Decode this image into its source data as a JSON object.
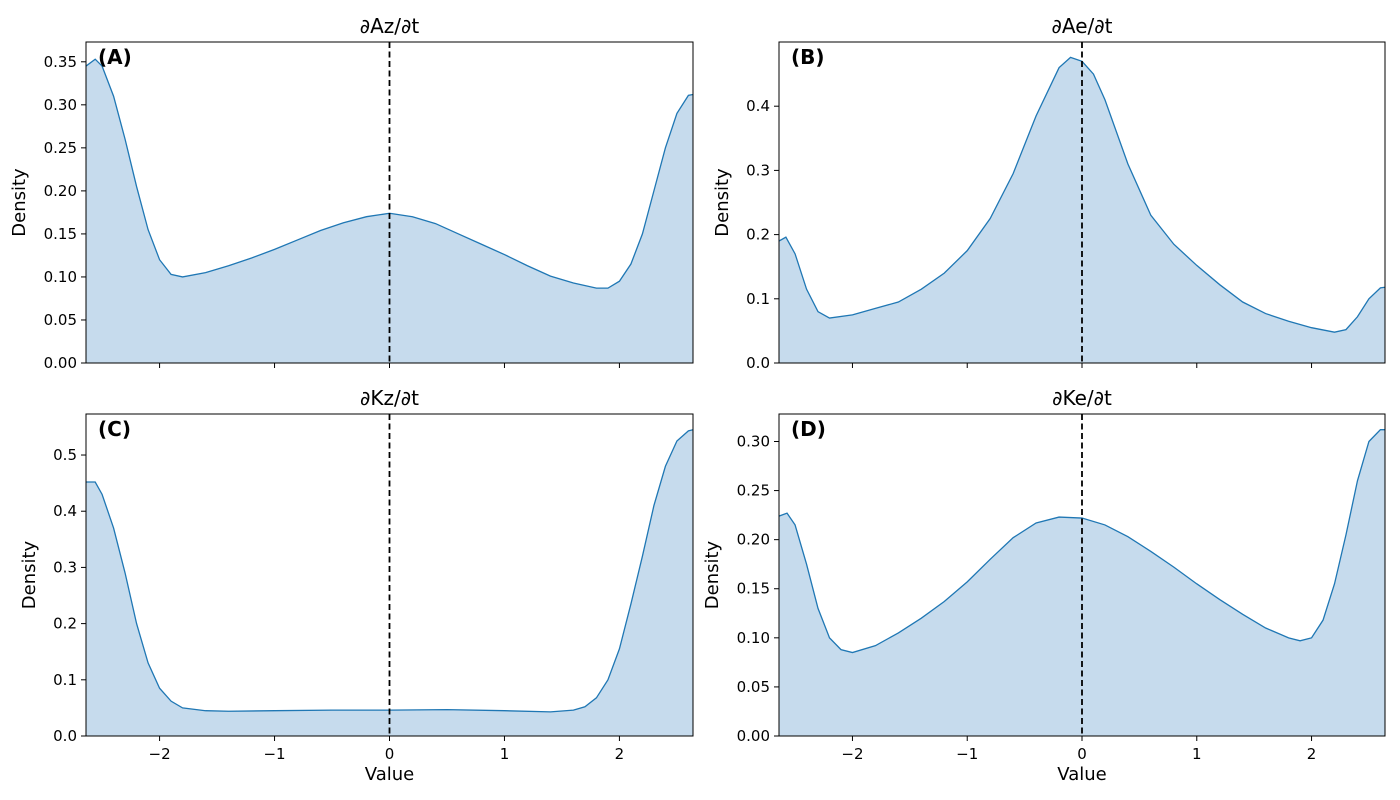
{
  "chart_data": [
    {
      "type": "area",
      "panel_label": "(A)",
      "title": "∂Az/∂t",
      "xlabel": "",
      "ylabel": "Density",
      "xlim": [
        -2.64,
        2.64
      ],
      "ylim": [
        0,
        0.373
      ],
      "xticks": [
        -2,
        -1,
        0,
        1,
        2
      ],
      "xtick_labels": [
        "",
        "",
        "",
        "",
        ""
      ],
      "yticks": [
        0,
        0.05,
        0.1,
        0.15,
        0.2,
        0.25,
        0.3,
        0.35
      ],
      "ytick_labels": [
        "0.00",
        "0.05",
        "0.10",
        "0.15",
        "0.20",
        "0.25",
        "0.30",
        "0.35"
      ],
      "reference_line_x": 0,
      "color": "#1f77b4",
      "fill_color": "#c6dbed",
      "x": [
        -2.64,
        -2.56,
        -2.5,
        -2.4,
        -2.3,
        -2.2,
        -2.1,
        -2.0,
        -1.9,
        -1.8,
        -1.6,
        -1.4,
        -1.2,
        -1.0,
        -0.8,
        -0.6,
        -0.4,
        -0.2,
        0.0,
        0.2,
        0.4,
        0.6,
        0.8,
        1.0,
        1.2,
        1.4,
        1.6,
        1.8,
        1.9,
        2.0,
        2.1,
        2.2,
        2.3,
        2.4,
        2.5,
        2.6,
        2.64
      ],
      "y": [
        0.345,
        0.353,
        0.345,
        0.31,
        0.26,
        0.205,
        0.155,
        0.12,
        0.103,
        0.1,
        0.105,
        0.113,
        0.122,
        0.132,
        0.143,
        0.154,
        0.163,
        0.17,
        0.174,
        0.17,
        0.162,
        0.15,
        0.138,
        0.126,
        0.113,
        0.101,
        0.093,
        0.087,
        0.087,
        0.095,
        0.115,
        0.15,
        0.2,
        0.25,
        0.29,
        0.311,
        0.312
      ]
    },
    {
      "type": "area",
      "panel_label": "(B)",
      "title": "∂Ae/∂t",
      "xlabel": "",
      "ylabel": "Density",
      "xlim": [
        -2.64,
        2.64
      ],
      "ylim": [
        0,
        0.5
      ],
      "xticks": [
        -2,
        -1,
        0,
        1,
        2
      ],
      "xtick_labels": [
        "",
        "",
        "",
        "",
        ""
      ],
      "yticks": [
        0,
        0.1,
        0.2,
        0.3,
        0.4
      ],
      "ytick_labels": [
        "0.0",
        "0.1",
        "0.2",
        "0.3",
        "0.4"
      ],
      "reference_line_x": 0,
      "color": "#1f77b4",
      "fill_color": "#c6dbed",
      "x": [
        -2.64,
        -2.58,
        -2.5,
        -2.4,
        -2.3,
        -2.2,
        -2.0,
        -1.8,
        -1.6,
        -1.4,
        -1.2,
        -1.0,
        -0.8,
        -0.6,
        -0.4,
        -0.2,
        -0.1,
        0.0,
        0.1,
        0.2,
        0.4,
        0.6,
        0.8,
        1.0,
        1.2,
        1.4,
        1.6,
        1.8,
        2.0,
        2.2,
        2.3,
        2.4,
        2.5,
        2.6,
        2.64
      ],
      "y": [
        0.19,
        0.196,
        0.17,
        0.115,
        0.08,
        0.07,
        0.075,
        0.085,
        0.095,
        0.115,
        0.14,
        0.175,
        0.225,
        0.295,
        0.385,
        0.46,
        0.476,
        0.47,
        0.45,
        0.41,
        0.31,
        0.23,
        0.185,
        0.152,
        0.122,
        0.095,
        0.077,
        0.065,
        0.055,
        0.048,
        0.052,
        0.072,
        0.1,
        0.117,
        0.118
      ]
    },
    {
      "type": "area",
      "panel_label": "(C)",
      "title": "∂Kz/∂t",
      "xlabel": "Value",
      "ylabel": "Density",
      "xlim": [
        -2.64,
        2.64
      ],
      "ylim": [
        0,
        0.573
      ],
      "xticks": [
        -2,
        -1,
        0,
        1,
        2
      ],
      "xtick_labels": [
        "−2",
        "−1",
        "0",
        "1",
        "2"
      ],
      "yticks": [
        0,
        0.1,
        0.2,
        0.3,
        0.4,
        0.5
      ],
      "ytick_labels": [
        "0.0",
        "0.1",
        "0.2",
        "0.3",
        "0.4",
        "0.5"
      ],
      "reference_line_x": 0,
      "color": "#1f77b4",
      "fill_color": "#c6dbed",
      "x": [
        -2.64,
        -2.56,
        -2.5,
        -2.4,
        -2.3,
        -2.2,
        -2.1,
        -2.0,
        -1.9,
        -1.8,
        -1.6,
        -1.4,
        -1.0,
        -0.5,
        0.0,
        0.5,
        1.0,
        1.4,
        1.6,
        1.7,
        1.8,
        1.9,
        2.0,
        2.1,
        2.2,
        2.3,
        2.4,
        2.5,
        2.6,
        2.64
      ],
      "y": [
        0.452,
        0.452,
        0.43,
        0.37,
        0.29,
        0.2,
        0.13,
        0.085,
        0.062,
        0.05,
        0.045,
        0.044,
        0.045,
        0.046,
        0.046,
        0.047,
        0.045,
        0.043,
        0.046,
        0.052,
        0.068,
        0.1,
        0.155,
        0.235,
        0.32,
        0.41,
        0.48,
        0.525,
        0.543,
        0.545
      ]
    },
    {
      "type": "area",
      "panel_label": "(D)",
      "title": "∂Ke/∂t",
      "xlabel": "Value",
      "ylabel": "Density",
      "xlim": [
        -2.64,
        2.64
      ],
      "ylim": [
        0,
        0.328
      ],
      "xticks": [
        -2,
        -1,
        0,
        1,
        2
      ],
      "xtick_labels": [
        "−2",
        "−1",
        "0",
        "1",
        "2"
      ],
      "yticks": [
        0,
        0.05,
        0.1,
        0.15,
        0.2,
        0.25,
        0.3
      ],
      "ytick_labels": [
        "0.00",
        "0.05",
        "0.10",
        "0.15",
        "0.20",
        "0.25",
        "0.30"
      ],
      "reference_line_x": 0,
      "color": "#1f77b4",
      "fill_color": "#c6dbed",
      "x": [
        -2.64,
        -2.57,
        -2.5,
        -2.4,
        -2.3,
        -2.2,
        -2.1,
        -2.0,
        -1.8,
        -1.6,
        -1.4,
        -1.2,
        -1.0,
        -0.8,
        -0.6,
        -0.4,
        -0.2,
        0.0,
        0.2,
        0.4,
        0.6,
        0.8,
        1.0,
        1.2,
        1.4,
        1.6,
        1.8,
        1.9,
        2.0,
        2.1,
        2.2,
        2.3,
        2.4,
        2.5,
        2.6,
        2.64
      ],
      "y": [
        0.224,
        0.227,
        0.215,
        0.175,
        0.13,
        0.1,
        0.088,
        0.085,
        0.092,
        0.105,
        0.12,
        0.137,
        0.157,
        0.18,
        0.202,
        0.217,
        0.223,
        0.222,
        0.215,
        0.203,
        0.188,
        0.172,
        0.155,
        0.139,
        0.124,
        0.11,
        0.1,
        0.097,
        0.1,
        0.118,
        0.155,
        0.205,
        0.26,
        0.3,
        0.312,
        0.312
      ]
    }
  ]
}
